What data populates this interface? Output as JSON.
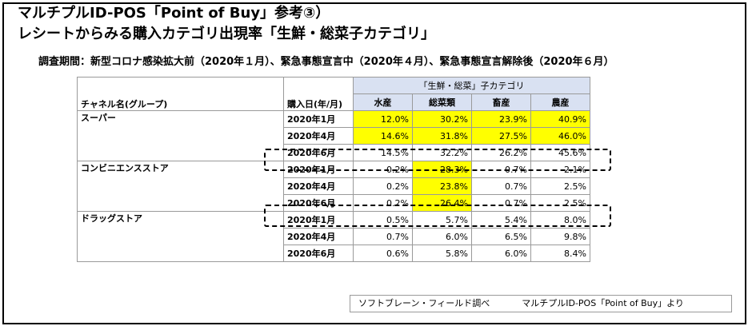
{
  "title": {
    "line1": "マルチプルID-POS「Point of Buy」参考③）",
    "line2": "レシートからみる購入カテゴリ出現率「生鮮・総菜子カテゴリ」"
  },
  "subtitle": "調査期間：新型コロナ感染拡大前（2020年１月）、緊急事態宣言中（2020年４月）、緊急事態宣言解除後（2020年６月）",
  "table": {
    "group_header": "「生鮮・総菜」子カテゴリ",
    "channel_header": "チャネル名(グループ)",
    "date_header": "購入日(年/月)",
    "categories": [
      "水産",
      "総菜類",
      "畜産",
      "農産"
    ],
    "groups": [
      {
        "channel": "スーパー",
        "rows": [
          {
            "date": "2020年1月",
            "values": [
              "12.0%",
              "30.2%",
              "23.9%",
              "40.9%"
            ]
          },
          {
            "date": "2020年4月",
            "values": [
              "14.6%",
              "31.8%",
              "27.5%",
              "46.0%"
            ]
          },
          {
            "date": "2020年6月",
            "values": [
              "14.5%",
              "32.2%",
              "26.2%",
              "45.6%"
            ]
          }
        ]
      },
      {
        "channel": "コンビニエンスストア",
        "rows": [
          {
            "date": "2020年1月",
            "values": [
              "0.2%",
              "28.3%",
              "0.7%",
              "2.1%"
            ]
          },
          {
            "date": "2020年4月",
            "values": [
              "0.2%",
              "23.8%",
              "0.7%",
              "2.5%"
            ]
          },
          {
            "date": "2020年6月",
            "values": [
              "0.2%",
              "26.4%",
              "0.7%",
              "2.5%"
            ]
          }
        ]
      },
      {
        "channel": "ドラッグストア",
        "rows": [
          {
            "date": "2020年1月",
            "values": [
              "0.5%",
              "5.7%",
              "5.4%",
              "8.0%"
            ]
          },
          {
            "date": "2020年4月",
            "values": [
              "0.7%",
              "6.0%",
              "6.5%",
              "9.8%"
            ]
          },
          {
            "date": "2020年6月",
            "values": [
              "0.6%",
              "5.8%",
              "6.0%",
              "8.4%"
            ]
          }
        ]
      }
    ]
  },
  "source": {
    "part1": "ソフトブレーン・フィールド調べ",
    "part2": "マルチプルID-POS「Point of Buy」より"
  },
  "colors": {
    "highlight": "#ffff00",
    "header_blue": "#d9e1f2"
  }
}
